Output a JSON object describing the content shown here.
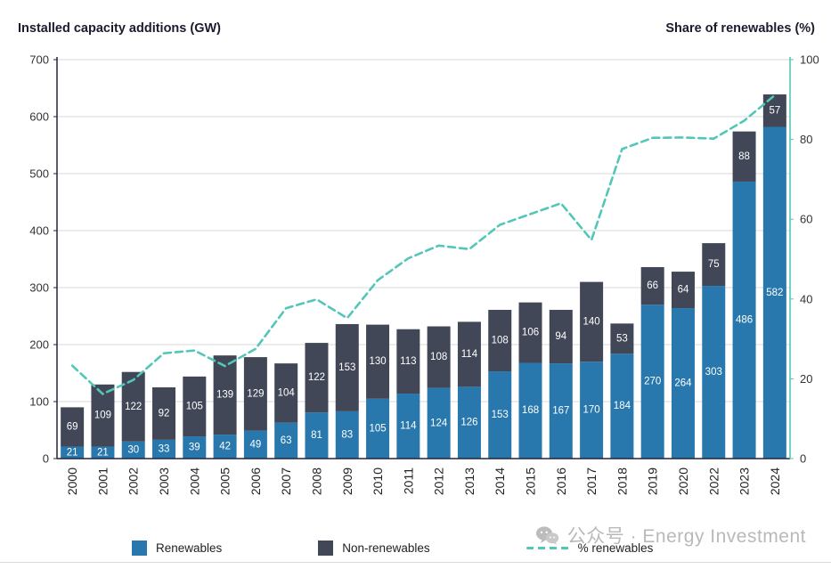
{
  "header": {
    "left_title": "Installed capacity additions (GW)",
    "right_title": "Share of renewables (%)"
  },
  "legend": {
    "renewables": "Renewables",
    "non_renewables": "Non-renewables",
    "pct_renewables": "% renewables"
  },
  "watermark": "公众号 · Energy Investment",
  "colors": {
    "renewables": "#2878ae",
    "non_renewables": "#414757",
    "pct_line": "#52c7b8",
    "grid": "#d9d9d9",
    "axis": "#23233c"
  },
  "chart_data": {
    "type": "bar",
    "stacked": true,
    "grid": true,
    "legend_position": "bottom",
    "categories": [
      "2000",
      "2001",
      "2002",
      "2003",
      "2004",
      "2005",
      "2006",
      "2007",
      "2008",
      "2009",
      "2010",
      "2011",
      "2012",
      "2013",
      "2014",
      "2015",
      "2016",
      "2017",
      "2018",
      "2019",
      "2020",
      "2022",
      "2023",
      "2024"
    ],
    "series": [
      {
        "name": "Renewables",
        "color": "#2878ae",
        "values": [
          21,
          21,
          30,
          33,
          39,
          42,
          49,
          63,
          81,
          83,
          105,
          114,
          124,
          126,
          153,
          168,
          167,
          170,
          184,
          270,
          264,
          303,
          486,
          582
        ]
      },
      {
        "name": "Non-renewables",
        "color": "#414757",
        "values": [
          69,
          109,
          122,
          92,
          105,
          139,
          129,
          104,
          122,
          153,
          130,
          113,
          108,
          114,
          108,
          106,
          94,
          140,
          53,
          66,
          64,
          75,
          88,
          57
        ]
      }
    ],
    "line_series": {
      "name": "% renewables",
      "color": "#52c7b8",
      "style": "dashed",
      "axis": "right",
      "values": [
        23.3,
        16.2,
        19.7,
        26.4,
        27.1,
        23.2,
        27.5,
        37.7,
        39.9,
        35.2,
        44.7,
        50.2,
        53.4,
        52.5,
        58.6,
        61.3,
        64.0,
        54.8,
        77.6,
        80.4,
        80.5,
        80.2,
        84.7,
        91.1
      ]
    },
    "left_axis": {
      "label": "Installed capacity additions (GW)",
      "min": 0,
      "max": 700,
      "ticks": [
        0,
        100,
        200,
        300,
        400,
        500,
        600,
        700
      ]
    },
    "right_axis": {
      "label": "Share of renewables (%)",
      "min": 0,
      "max": 100,
      "ticks": [
        0,
        20,
        40,
        60,
        80,
        100
      ]
    }
  }
}
